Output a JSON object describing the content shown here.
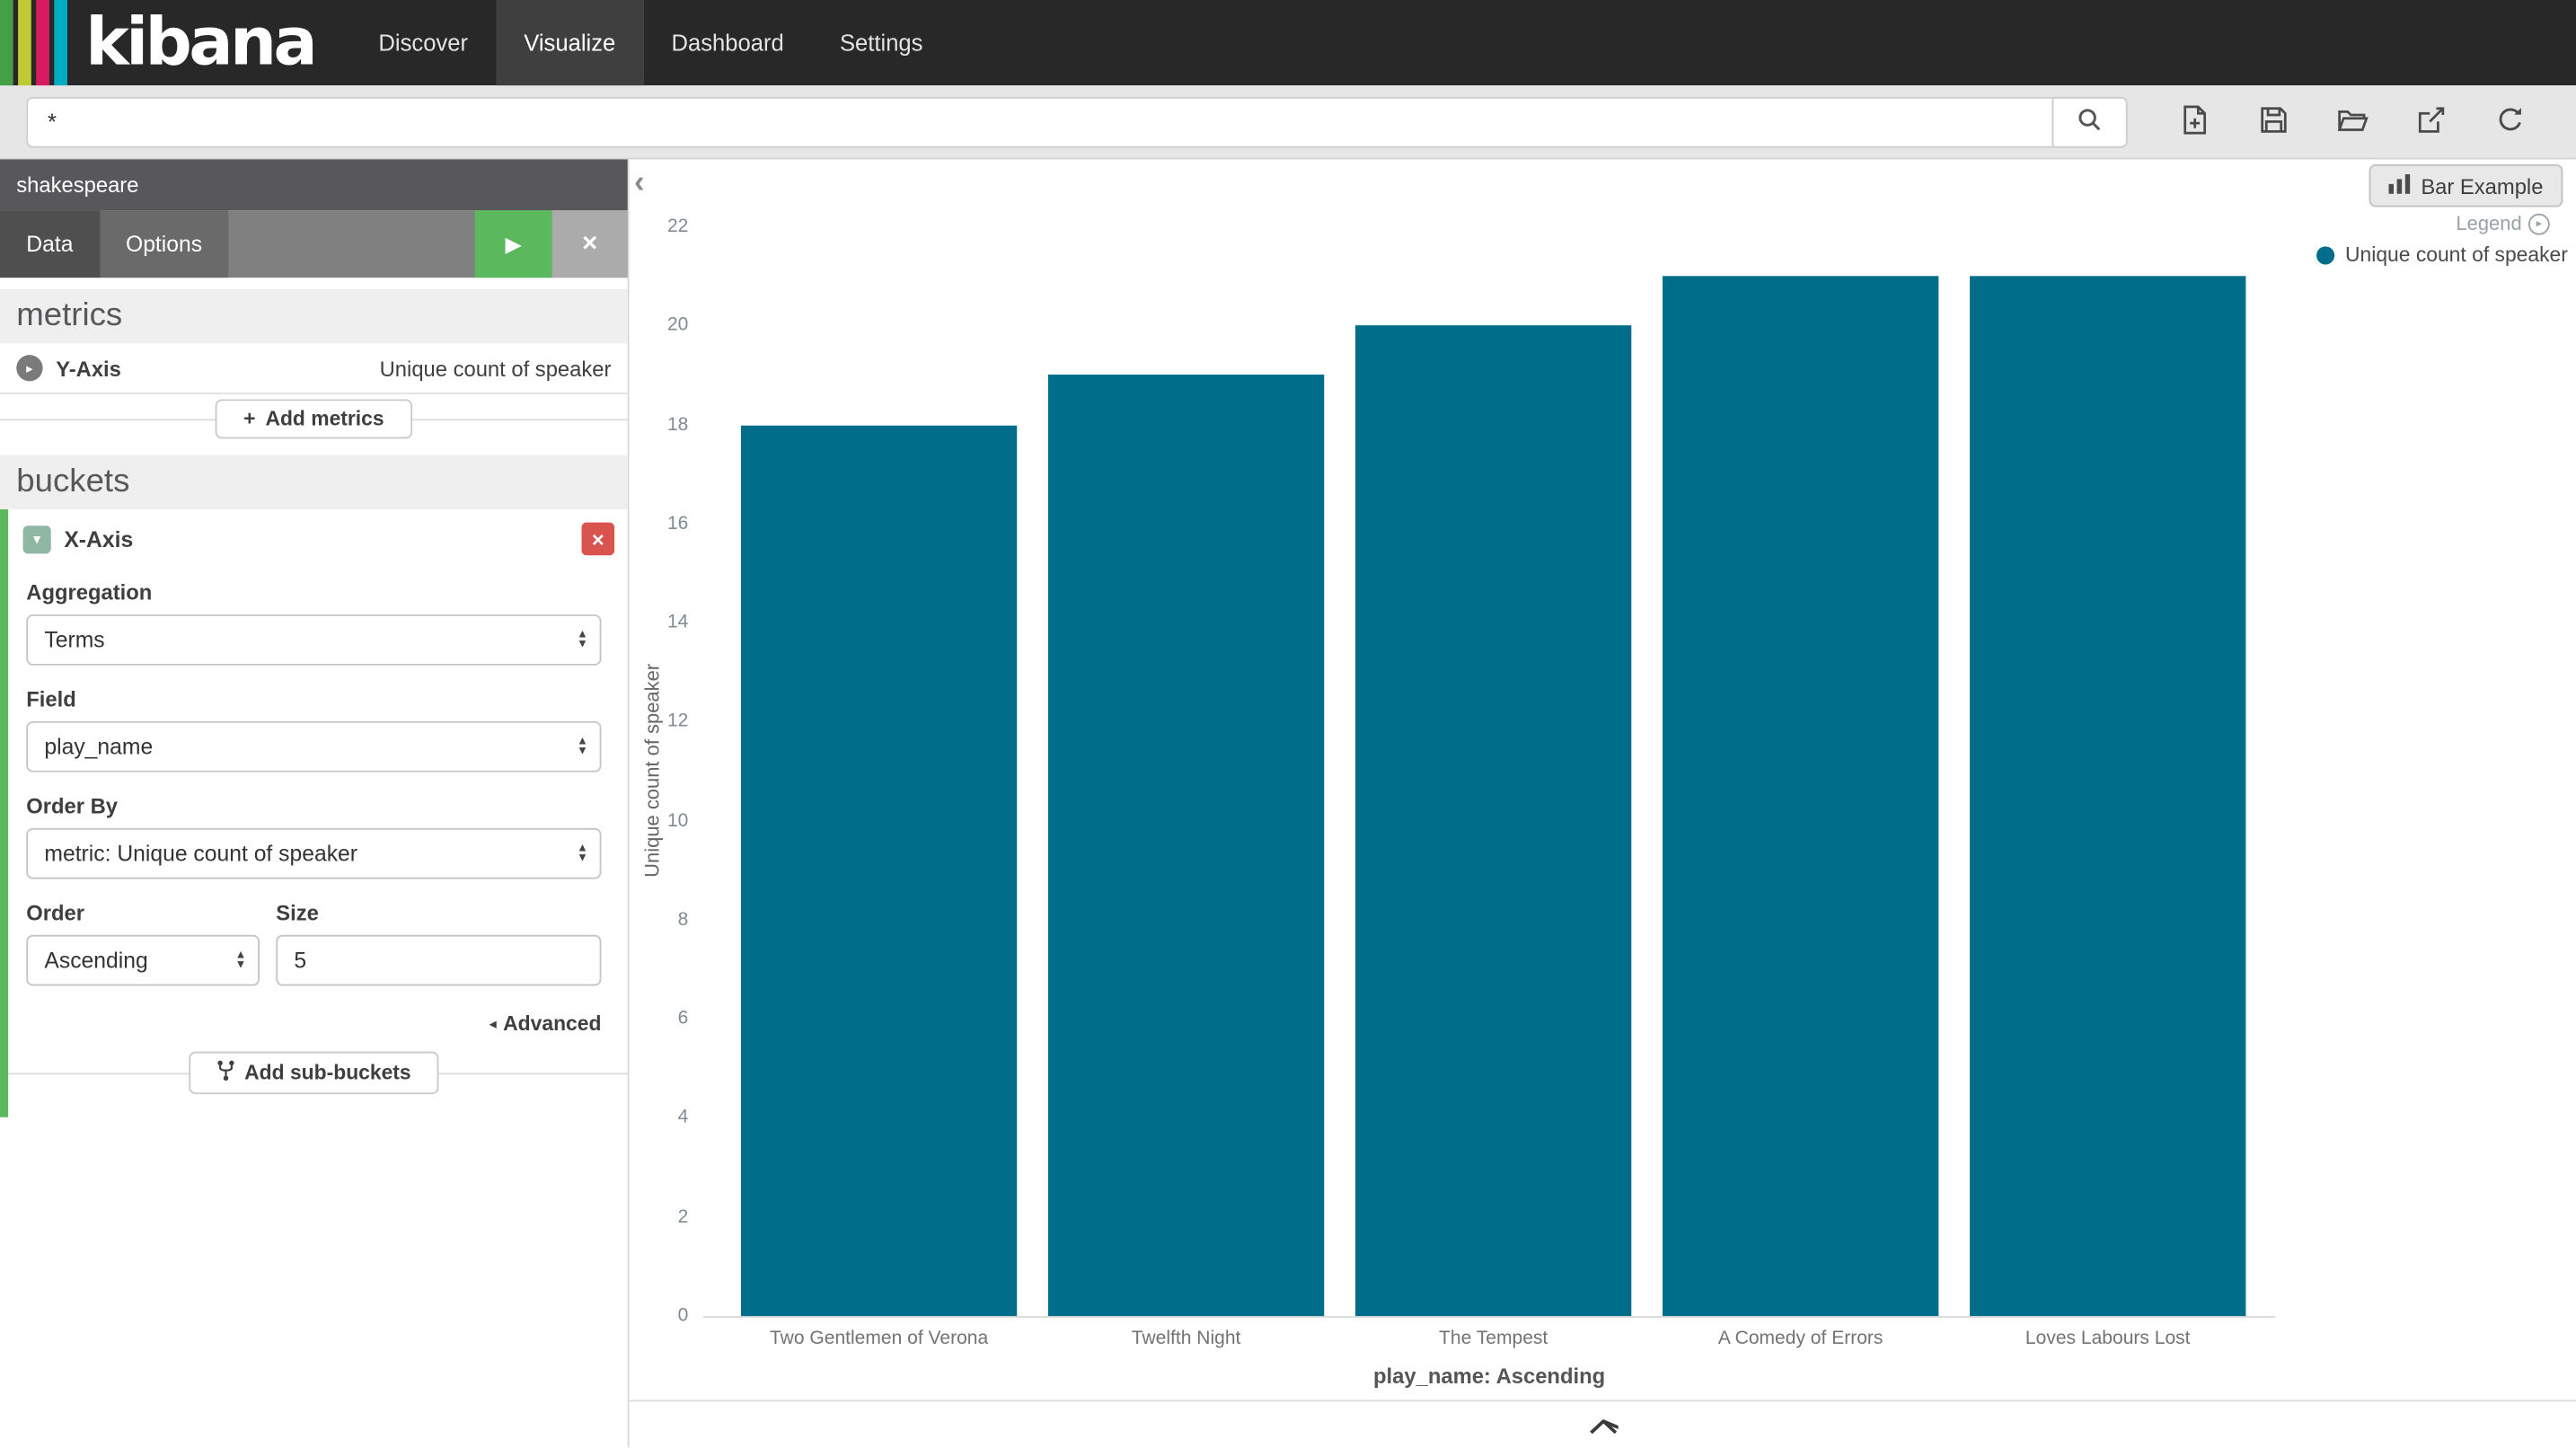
{
  "colors": {
    "accent_green": "#5CB85C",
    "danger_red": "#D9534F",
    "bar_teal": "#006E8A"
  },
  "glyphs": {
    "plus": "+",
    "caret_down": "▾",
    "caret_right": "▸",
    "close": "×",
    "play": "▶",
    "select_up": "▲",
    "select_down": "▼",
    "advanced_arrow": "◂",
    "collapse_left": "‹",
    "legend_caret": "▸"
  },
  "navbar": {
    "brand": "kibana",
    "brand_stripes": [
      "#43A047",
      "#C0CA33",
      "#D81B60",
      "#00ACC1"
    ],
    "items": [
      {
        "label": "Discover"
      },
      {
        "label": "Visualize"
      },
      {
        "label": "Dashboard"
      },
      {
        "label": "Settings"
      }
    ],
    "active": "Visualize"
  },
  "query_bar": {
    "value": "*",
    "icons": [
      "search-icon",
      "new-document-icon",
      "save-icon",
      "open-folder-icon",
      "export-icon",
      "refresh-icon"
    ]
  },
  "sidebar": {
    "index_pattern": "shakespeare",
    "tabs": [
      {
        "label": "Data"
      },
      {
        "label": "Options"
      }
    ],
    "active_tab": "Data",
    "metrics": {
      "heading": "metrics",
      "row_label": "Y-Axis",
      "row_value": "Unique count of speaker",
      "add_button": "Add metrics"
    },
    "buckets": {
      "heading": "buckets",
      "title": "X-Axis",
      "aggregation_label": "Aggregation",
      "aggregation_value": "Terms",
      "field_label": "Field",
      "field_value": "play_name",
      "order_by_label": "Order By",
      "order_by_value": "metric: Unique count of speaker",
      "order_label": "Order",
      "order_value": "Ascending",
      "size_label": "Size",
      "size_value": "5",
      "advanced_label": "Advanced",
      "add_button": "Add sub-buckets"
    }
  },
  "main": {
    "view_button": "Bar Example",
    "legend_title": "Legend",
    "legend_items": [
      {
        "label": "Unique count of speaker",
        "color": "#006E8A"
      }
    ]
  },
  "chart_data": {
    "type": "bar",
    "categories": [
      "Two Gentlemen of Verona",
      "Twelfth Night",
      "The Tempest",
      "A Comedy of Errors",
      "Loves Labours Lost"
    ],
    "series": [
      {
        "name": "Unique count of speaker",
        "values": [
          18,
          19,
          20,
          21,
          21
        ]
      }
    ],
    "title": "",
    "xlabel": "play_name: Ascending",
    "ylabel": "Unique count of speaker",
    "ylim": [
      0,
      22
    ],
    "ytick_step": 2,
    "bar_color": "#006E8A",
    "legend_position": "top-right",
    "grid": false
  }
}
